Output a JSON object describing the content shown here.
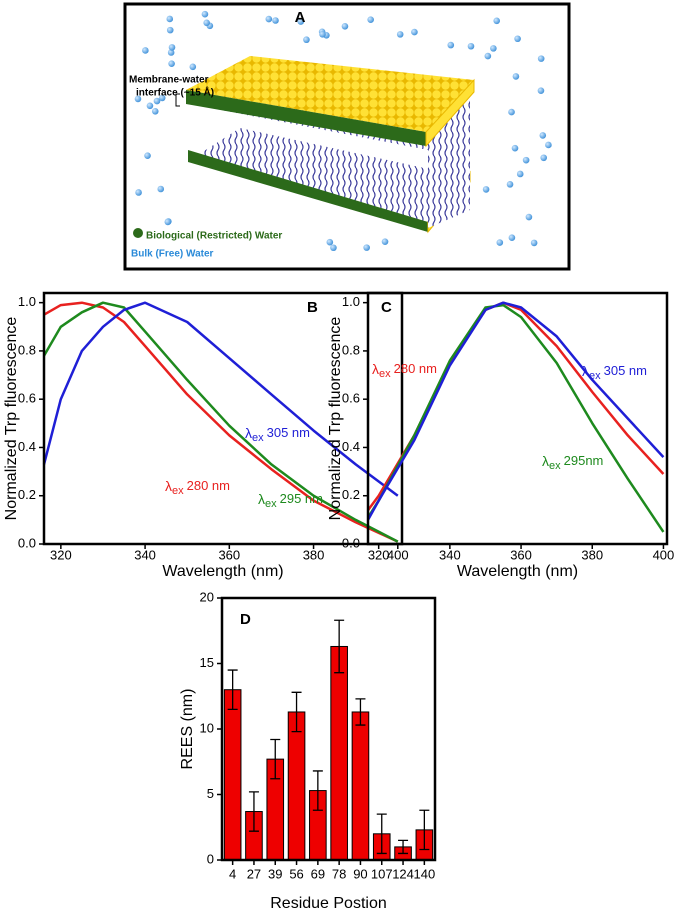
{
  "diagram": {
    "label": "A",
    "interface_label": [
      "Membrane-water",
      "interface (~15 Å)"
    ],
    "restricted_water": "Biological (Restricted) Water",
    "free_water": "Bulk (Free) Water"
  },
  "chart_data": [
    {
      "type": "line",
      "label": "B",
      "xlabel": "Wavelength (nm)",
      "ylabel": "Normalized Trp fluorescence",
      "x": [
        316,
        320,
        325,
        330,
        335,
        340,
        350,
        360,
        370,
        380,
        390,
        400
      ],
      "series": [
        {
          "name_prefix": "λ",
          "name_sub": "ex",
          "name": "280 nm",
          "color": "#e8211f",
          "values": [
            0.95,
            0.99,
            1.0,
            0.98,
            0.92,
            0.82,
            0.62,
            0.45,
            0.31,
            0.18,
            0.09,
            0.01
          ]
        },
        {
          "name_prefix": "λ",
          "name_sub": "ex",
          "name": "295 nm",
          "color": "#1e8a1e",
          "values": [
            0.78,
            0.9,
            0.96,
            1.0,
            0.98,
            0.88,
            0.68,
            0.49,
            0.33,
            0.2,
            0.1,
            0.01
          ]
        },
        {
          "name_prefix": "λ",
          "name_sub": "ex",
          "name": "305 nm",
          "color": "#1f1fd6",
          "values": [
            0.33,
            0.6,
            0.8,
            0.9,
            0.97,
            1.0,
            0.92,
            0.77,
            0.62,
            0.47,
            0.33,
            0.2
          ]
        }
      ],
      "xlim": [
        316,
        401
      ],
      "ylim": [
        0,
        1.04
      ],
      "xticks": [
        320,
        340,
        360,
        380,
        400
      ],
      "yticks": [
        {
          "value": 0,
          "label": "0.0"
        },
        0.2,
        0.4,
        0.6,
        0.8,
        {
          "value": 1,
          "label": "1.0"
        }
      ]
    },
    {
      "type": "line",
      "label": "C",
      "xlabel": "Wavelength (nm)",
      "ylabel": "Normalized Trp fluorescence",
      "x": [
        317,
        320,
        330,
        340,
        350,
        355,
        360,
        370,
        380,
        390,
        400
      ],
      "series": [
        {
          "name_prefix": "λ",
          "name_sub": "ex",
          "name": "280 nm",
          "color": "#e8211f",
          "values": [
            0.14,
            0.2,
            0.45,
            0.75,
            0.97,
            1.0,
            0.97,
            0.82,
            0.63,
            0.45,
            0.29
          ]
        },
        {
          "name_prefix": "λ",
          "name_sub": "ex",
          "name": "295nm",
          "color": "#1e8a1e",
          "values": [
            0.11,
            0.18,
            0.45,
            0.76,
            0.98,
            0.99,
            0.94,
            0.75,
            0.5,
            0.27,
            0.05
          ]
        },
        {
          "name_prefix": "λ",
          "name_sub": "ex",
          "name": "305 nm",
          "color": "#1f1fd6",
          "values": [
            0.1,
            0.18,
            0.43,
            0.74,
            0.97,
            1.0,
            0.98,
            0.86,
            0.68,
            0.52,
            0.36
          ]
        }
      ],
      "xlim": [
        317,
        401
      ],
      "ylim": [
        0,
        1.04
      ],
      "xticks": [
        320,
        340,
        360,
        380,
        400
      ],
      "yticks": [
        {
          "value": 0,
          "label": "0.0"
        },
        0.2,
        0.4,
        0.6,
        0.8,
        {
          "value": 1,
          "label": "1.0"
        }
      ]
    },
    {
      "type": "bar",
      "label": "D",
      "xlabel": "Residue Postion",
      "ylabel": "REES (nm)",
      "categories": [
        "4",
        "27",
        "39",
        "56",
        "69",
        "78",
        "90",
        "107",
        "124",
        "140"
      ],
      "values": [
        13,
        3.7,
        7.7,
        11.3,
        5.3,
        16.3,
        11.3,
        2.0,
        1.0,
        2.3
      ],
      "errors": [
        1.5,
        1.5,
        1.5,
        1.5,
        1.5,
        2.0,
        1.0,
        1.5,
        0.5,
        1.5
      ],
      "color": "#ee0000",
      "ylim": [
        0,
        20
      ],
      "yticks": [
        0,
        5,
        10,
        15,
        20
      ]
    }
  ]
}
